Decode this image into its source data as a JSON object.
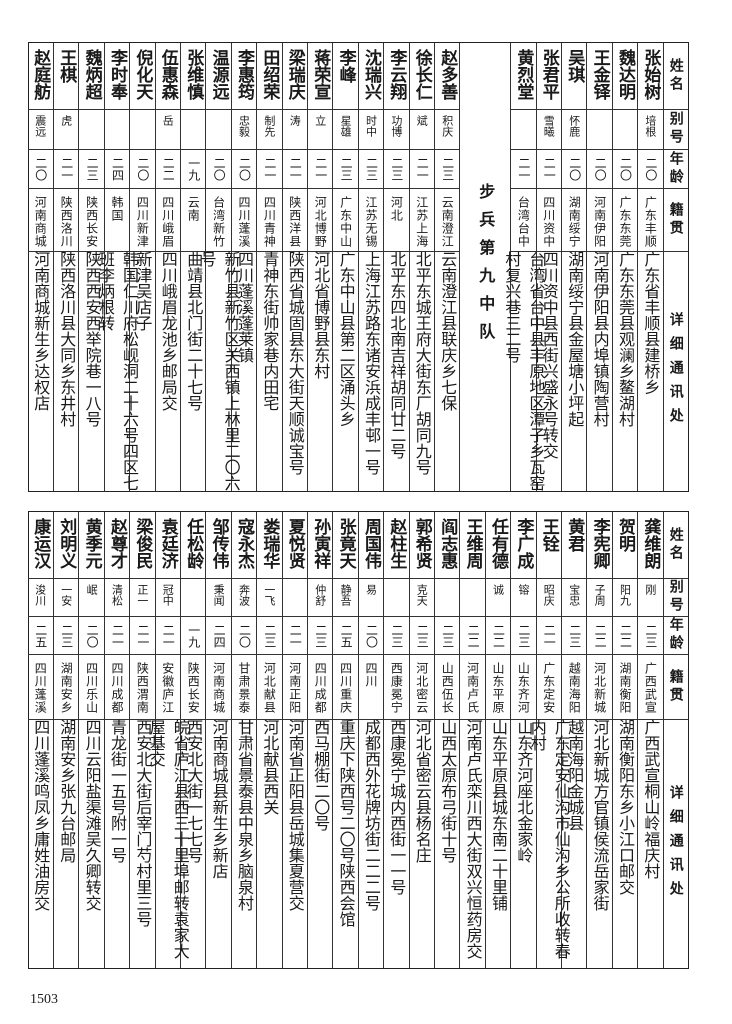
{
  "headers": {
    "name": "姓名",
    "alias": "别号",
    "age": "年龄",
    "origin": "籍贯",
    "address": "详细通讯处"
  },
  "top_section_title": "步兵第九中队",
  "top_table": {
    "before_section": [
      {
        "name": "张始树",
        "alias": "培根",
        "age": "二〇",
        "origin": "广东丰顺",
        "address": "广东省丰顺县建桥乡"
      },
      {
        "name": "魏达明",
        "alias": "",
        "age": "二〇",
        "origin": "广东东莞",
        "address": "广东东莞县观澜乡鳌湖村"
      },
      {
        "name": "王金铎",
        "alias": "",
        "age": "二〇",
        "origin": "河南伊阳",
        "address": "河南伊阳县内埠镇陶营村"
      },
      {
        "name": "吴琪",
        "alias": "怀鹿",
        "age": "二〇",
        "origin": "湖南绥宁",
        "address": "湖南绥宁县金屋塘小坪起"
      },
      {
        "name": "张君平",
        "alias": "雪曦",
        "age": "二一",
        "origin": "四川资中",
        "address": "四川资中县西街兴盛永号转交"
      },
      {
        "name": "黄烈堂",
        "alias": "",
        "age": "二一",
        "origin": "台湾台中",
        "address": "台湾省台中县丰原地区潭子乡瓦窑村复兴巷三二号"
      }
    ],
    "after_section": [
      {
        "name": "赵多善",
        "alias": "积庆",
        "age": "二三",
        "origin": "云南澄江",
        "address": "云南澄江县联庆乡七保"
      },
      {
        "name": "徐长仁",
        "alias": "斌",
        "age": "二一",
        "origin": "江苏上海",
        "address": "北平东城王府大街东厂胡同九号"
      },
      {
        "name": "李云翔",
        "alias": "功博",
        "age": "二三",
        "origin": "河北",
        "address": "北平东四北南吉祥胡同廿二号"
      },
      {
        "name": "沈瑞兴",
        "alias": "时中",
        "age": "二三",
        "origin": "江苏无锡",
        "address": "上海江苏路东诸安浜成丰邨一号"
      },
      {
        "name": "李峰",
        "alias": "星雄",
        "age": "二三",
        "origin": "广东中山",
        "address": "广东中山县第二区涌头乡"
      },
      {
        "name": "蒋荣宣",
        "alias": "立",
        "age": "二一",
        "origin": "河北博野",
        "address": "河北省博野县东村"
      },
      {
        "name": "梁瑞庆",
        "alias": "涛",
        "age": "二一",
        "origin": "陕西洋县",
        "address": "陕西省城固县东大街天顺诚宝号"
      },
      {
        "name": "田绍荣",
        "alias": "制先",
        "age": "二一",
        "origin": "四川青神",
        "address": "青神东街帅家巷内田宅"
      },
      {
        "name": "李惠筠",
        "alias": "忠毅",
        "age": "二〇",
        "origin": "四川蓬溪",
        "address": "四川蓬溪蓬莱镇"
      },
      {
        "name": "温源远",
        "alias": "",
        "age": "二〇",
        "origin": "台湾新竹",
        "address": "新竹县新竹区关西镇上林里二〇六号"
      },
      {
        "name": "张维慎",
        "alias": "",
        "age": "一九",
        "origin": "云南",
        "address": "曲靖县北门街二十七号"
      },
      {
        "name": "伍惠森",
        "alias": "岳",
        "age": "二二",
        "origin": "四川峨眉",
        "address": "四川峨眉龙池乡邮局交"
      },
      {
        "name": "倪化天",
        "alias": "",
        "age": "二〇",
        "origin": "四川新津",
        "address": "新津吴店子"
      },
      {
        "name": "李时奉",
        "alias": "",
        "age": "二四",
        "origin": "韩国",
        "address": "韩国仁川府松岘洞二十六号四区七班李炳根转"
      },
      {
        "name": "魏炳超",
        "alias": "",
        "age": "二三",
        "origin": "陕西长安",
        "address": "陕西西安西举院巷一八号"
      },
      {
        "name": "王棋",
        "alias": "虎",
        "age": "二一",
        "origin": "陕西洛川",
        "address": "陕西洛川县大同乡东井村"
      },
      {
        "name": "赵庭舫",
        "alias": "震远",
        "age": "二〇",
        "origin": "河南商城",
        "address": "河南商城新生乡达权店"
      }
    ]
  },
  "bottom_table": [
    {
      "name": "龚维朗",
      "alias": "刚",
      "age": "二三",
      "origin": "广西武宣",
      "address": "广西武宣桐山岭福庆村"
    },
    {
      "name": "贺明",
      "alias": "阳九",
      "age": "二二",
      "origin": "湖南衡阳",
      "address": "湖南衡阳东乡小江口邮交"
    },
    {
      "name": "李宪卿",
      "alias": "子周",
      "age": "二二",
      "origin": "河北新城",
      "address": "河北新城方官镇侯流岳家街"
    },
    {
      "name": "黄君",
      "alias": "宝忠",
      "age": "二三",
      "origin": "越南海阳",
      "address": "越南海阳金城县"
    },
    {
      "name": "王铨",
      "alias": "昭庆",
      "age": "二一",
      "origin": "广东定安",
      "address": "广东定安仙沟市仙沟乡公所收转春内村"
    },
    {
      "name": "李广成",
      "alias": "镕",
      "age": "二三",
      "origin": "山东齐河",
      "address": "山东齐河座北金家岭"
    },
    {
      "name": "任有德",
      "alias": "诚",
      "age": "二二",
      "origin": "山东平原",
      "address": "山东平原县城东南二十里铺"
    },
    {
      "name": "王维周",
      "alias": "",
      "age": "二二",
      "origin": "河南卢氏",
      "address": "河南卢氏栾川西大街双兴恒药房交"
    },
    {
      "name": "阎志惠",
      "alias": "",
      "age": "二三",
      "origin": "山西伍长",
      "address": "山西太原布弓街十号"
    },
    {
      "name": "郭希贤",
      "alias": "克天",
      "age": "二三",
      "origin": "河北密云",
      "address": "河北省密云县杨名庄"
    },
    {
      "name": "赵柱生",
      "alias": "",
      "age": "二三",
      "origin": "西康冕宁",
      "address": "西康冕宁城内西街一一号"
    },
    {
      "name": "周国伟",
      "alias": "易",
      "age": "二〇",
      "origin": "四川",
      "address": "成都西外花牌坊街二二二号"
    },
    {
      "name": "张竟天",
      "alias": "静吾",
      "age": "二五",
      "origin": "四川重庆",
      "address": "重庆下陕西号二〇号陕西会馆"
    },
    {
      "name": "孙寅祥",
      "alias": "仲舒",
      "age": "二三",
      "origin": "四川成都",
      "address": "西马棚街二〇号"
    },
    {
      "name": "夏悦贤",
      "alias": "",
      "age": "二一",
      "origin": "河南正阳",
      "address": "河南省正阳县岳城集夏营交"
    },
    {
      "name": "娄瑞华",
      "alias": "一飞",
      "age": "二三",
      "origin": "河北献县",
      "address": "河北献县西关"
    },
    {
      "name": "寇永杰",
      "alias": "奔波",
      "age": "二〇",
      "origin": "甘肃景泰",
      "address": "甘肃省景泰县中泉乡脑泉村"
    },
    {
      "name": "邹传伟",
      "alias": "秉闻",
      "age": "二四",
      "origin": "河南商城",
      "address": "河南商城县新生乡新店"
    },
    {
      "name": "任松龄",
      "alias": "",
      "age": "一九",
      "origin": "陕西长安",
      "address": "西安北大街一七七号"
    },
    {
      "name": "袁廷济",
      "alias": "冠中",
      "age": "二一",
      "origin": "安徽庐江",
      "address": "皖省庐江县西三十里埠邮转袁家大屋基交"
    },
    {
      "name": "梁俊民",
      "alias": "正一",
      "age": "二一",
      "origin": "陕西渭南",
      "address": "西安北大街后宰门芍村里三号"
    },
    {
      "name": "赵尊才",
      "alias": "清松",
      "age": "二一",
      "origin": "四川成都",
      "address": "青龙街一五号附一号"
    },
    {
      "name": "黄季元",
      "alias": "岷",
      "age": "二〇",
      "origin": "四川乐山",
      "address": "四川云阳盐渠滩吴久卿转交"
    },
    {
      "name": "刘明义",
      "alias": "一安",
      "age": "二三",
      "origin": "湖南安乡",
      "address": "湖南安乡张九台邮局"
    },
    {
      "name": "康运汉",
      "alias": "浚川",
      "age": "二五",
      "origin": "四川蓬溪",
      "address": "四川蓬溪鸣凤乡庸姓油房交"
    }
  ],
  "page_number": "1503"
}
